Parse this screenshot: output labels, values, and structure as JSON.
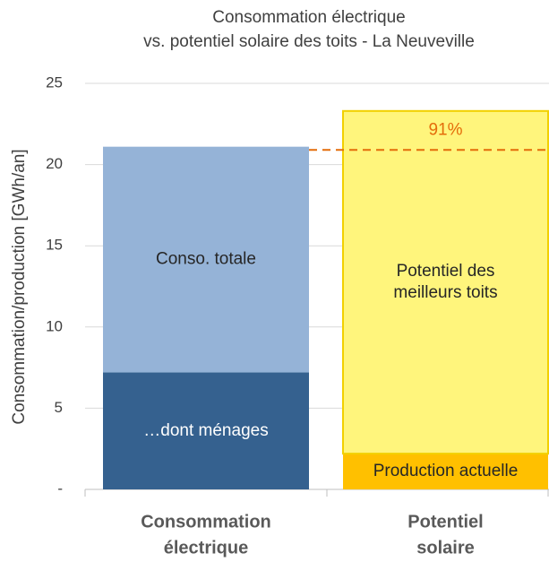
{
  "chart_data": {
    "type": "stacked_bar",
    "title": [
      "Consommation électrique",
      "vs. potentiel solaire des toits - La Neuveville"
    ],
    "y_label": "Consommation/production [GWh/an]",
    "categories": [
      [
        "Consommation",
        "électrique"
      ],
      [
        "Potentiel",
        "solaire"
      ]
    ],
    "segments": [
      [
        {
          "label": [
            "…dont ménages"
          ],
          "value": 7.2,
          "color": "#35618f",
          "text_color": "#ffffff"
        },
        {
          "label": [
            "Conso. totale"
          ],
          "value": 13.9,
          "color": "#95b3d7",
          "text_color": "#262626"
        }
      ],
      [
        {
          "label": [
            "Production actuelle"
          ],
          "value": 2.2,
          "color": "#ffc000",
          "text_color": "#262626"
        },
        {
          "label": [
            "Potentiel des",
            "meilleurs toits"
          ],
          "value": 21.1,
          "color": "#fff57c",
          "text_color": "#262626"
        }
      ]
    ],
    "reference_line": {
      "value": 20.9,
      "label": "91%",
      "color": "#e46c0a"
    },
    "ylim": [
      0,
      25
    ],
    "yticks": [
      {
        "value": 0,
        "label": "-"
      },
      5,
      10,
      15,
      20,
      25
    ],
    "grid": true
  }
}
